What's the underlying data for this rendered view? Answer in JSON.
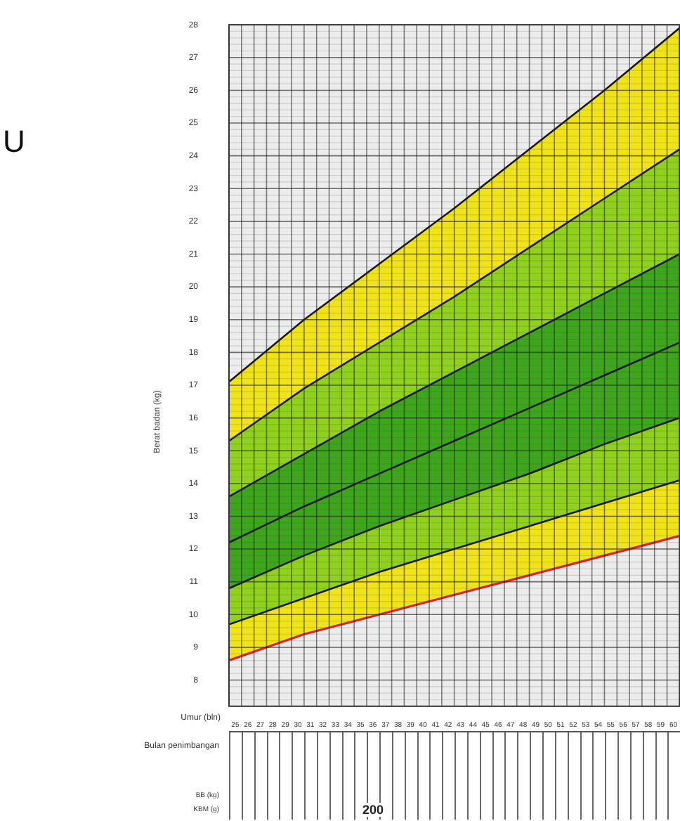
{
  "chart_data": {
    "type": "line",
    "title": "U",
    "ylabel": "Berat badan (kg)",
    "xlabel": "Umur (bln)",
    "x": [
      24,
      30,
      36,
      42,
      48,
      54,
      60
    ],
    "series": [
      {
        "type": "line",
        "color": "#e02020",
        "values": [
          8.6,
          9.4,
          10.0,
          10.6,
          11.2,
          11.8,
          12.4
        ]
      },
      {
        "type": "area",
        "color": "#f0e418",
        "values": [
          9.7,
          10.5,
          11.3,
          12.0,
          12.7,
          13.4,
          14.1
        ]
      },
      {
        "type": "area",
        "color": "#8fd11c",
        "values": [
          10.8,
          11.8,
          12.7,
          13.5,
          14.3,
          15.2,
          16.0
        ]
      },
      {
        "type": "area",
        "color": "#3ea61c",
        "values": [
          12.2,
          13.3,
          14.3,
          15.3,
          16.3,
          17.3,
          18.3
        ]
      },
      {
        "type": "area",
        "color": "#3ea61c",
        "values": [
          13.6,
          14.9,
          16.2,
          17.4,
          18.6,
          19.8,
          21.0
        ]
      },
      {
        "type": "area",
        "color": "#8fd11c",
        "values": [
          15.3,
          16.9,
          18.3,
          19.7,
          21.2,
          22.7,
          24.2
        ]
      },
      {
        "type": "area",
        "color": "#f0e418",
        "values": [
          17.1,
          19.0,
          20.7,
          22.4,
          24.2,
          26.0,
          27.9
        ]
      }
    ],
    "xlim": [
      24,
      60
    ],
    "xticks": [
      {
        "value": 24.5,
        "label": "25"
      },
      {
        "value": 25.5,
        "label": "26"
      },
      {
        "value": 26.5,
        "label": "27"
      },
      {
        "value": 27.5,
        "label": "28"
      },
      {
        "value": 28.5,
        "label": "29"
      },
      {
        "value": 29.5,
        "label": "30"
      },
      {
        "value": 30.5,
        "label": "31"
      },
      {
        "value": 31.5,
        "label": "32"
      },
      {
        "value": 32.5,
        "label": "33"
      },
      {
        "value": 33.5,
        "label": "34"
      },
      {
        "value": 34.5,
        "label": "35"
      },
      {
        "value": 35.5,
        "label": "36"
      },
      {
        "value": 36.5,
        "label": "37"
      },
      {
        "value": 37.5,
        "label": "38"
      },
      {
        "value": 38.5,
        "label": "39"
      },
      {
        "value": 39.5,
        "label": "40"
      },
      {
        "value": 40.5,
        "label": "41"
      },
      {
        "value": 41.5,
        "label": "42"
      },
      {
        "value": 42.5,
        "label": "43"
      },
      {
        "value": 43.5,
        "label": "44"
      },
      {
        "value": 44.5,
        "label": "45"
      },
      {
        "value": 45.5,
        "label": "46"
      },
      {
        "value": 46.5,
        "label": "47"
      },
      {
        "value": 47.5,
        "label": "48"
      },
      {
        "value": 48.5,
        "label": "49"
      },
      {
        "value": 49.5,
        "label": "50"
      },
      {
        "value": 50.5,
        "label": "51"
      },
      {
        "value": 51.5,
        "label": "52"
      },
      {
        "value": 52.5,
        "label": "53"
      },
      {
        "value": 53.5,
        "label": "54"
      },
      {
        "value": 54.5,
        "label": "55"
      },
      {
        "value": 55.5,
        "label": "56"
      },
      {
        "value": 56.5,
        "label": "57"
      },
      {
        "value": 57.5,
        "label": "58"
      },
      {
        "value": 58.5,
        "label": "59"
      },
      {
        "value": 59.5,
        "label": "60"
      }
    ],
    "ylim": [
      7.2,
      28
    ],
    "yticks": [
      8,
      9,
      10,
      11,
      12,
      13,
      14,
      15,
      16,
      17,
      18,
      19,
      20,
      21,
      22,
      23,
      24,
      25,
      26,
      27,
      28
    ],
    "grid": true,
    "marker": "none",
    "annotations": [
      "Bulan penimbangan",
      "BB (kg)",
      "KBM (g)",
      "200"
    ]
  }
}
